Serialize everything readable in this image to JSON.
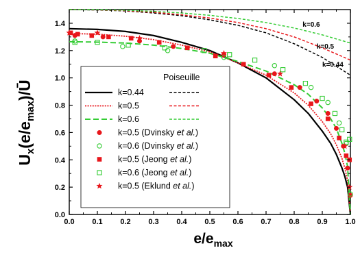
{
  "chart_data": {
    "type": "line",
    "xlabel": {
      "main": "e/e",
      "sub": "max"
    },
    "ylabel": {
      "main": "U",
      "sub": "x",
      "rest": "(e/e",
      "sub2": "max",
      "end": ")/Ū"
    },
    "xlim": [
      0.0,
      1.0
    ],
    "ylim": [
      0.0,
      1.5
    ],
    "x_ticks": [
      "0.0",
      "0.1",
      "0.2",
      "0.3",
      "0.4",
      "0.5",
      "0.6",
      "0.7",
      "0.8",
      "0.9",
      "1.0"
    ],
    "y_ticks": [
      "0.0",
      "0.2",
      "0.4",
      "0.6",
      "0.8",
      "1.0",
      "1.2",
      "1.4"
    ],
    "x_tick_values": [
      0.0,
      0.1,
      0.2,
      0.3,
      0.4,
      0.5,
      0.6,
      0.7,
      0.8,
      0.9,
      1.0
    ],
    "y_tick_values": [
      0.0,
      0.2,
      0.4,
      0.6,
      0.8,
      1.0,
      1.2,
      1.4
    ],
    "grid": false,
    "legend": {
      "placement": "center-left",
      "poiseuille_header": "Poiseuille",
      "entries": [
        {
          "label": "k=0.44",
          "key": "k044"
        },
        {
          "label": "k=0.5",
          "key": "k05"
        },
        {
          "label": "k=0.6",
          "key": "k06"
        },
        {
          "label": "k=0.5 (Dvinsky ",
          "italic": "et al.",
          "end": ")",
          "key": "dv05"
        },
        {
          "label": "k=0.6 (Dvinsky ",
          "italic": "et al.",
          "end": ")",
          "key": "dv06"
        },
        {
          "label": "k=0.5 (Jeong ",
          "italic": "et al.",
          "end": ")",
          "key": "je05"
        },
        {
          "label": "k=0.6 (Jeong ",
          "italic": "et al.",
          "end": ")",
          "key": "je06"
        },
        {
          "label": "k=0.5 (Eklund ",
          "italic": "et al.",
          "end": ")",
          "key": "ek05"
        }
      ]
    },
    "annotations": [
      {
        "text": "k=0.6",
        "x": 0.83,
        "y": 1.375
      },
      {
        "text": "k=0.5",
        "x": 0.88,
        "y": 1.215
      },
      {
        "text": "k=0.44",
        "x": 0.9,
        "y": 1.08
      }
    ],
    "line_series": [
      {
        "key": "k044",
        "color": "#000000",
        "style": "solid",
        "x": [
          0.0,
          0.1,
          0.2,
          0.3,
          0.4,
          0.5,
          0.6,
          0.7,
          0.8,
          0.85,
          0.9,
          0.93,
          0.95,
          0.97,
          0.98,
          0.99,
          1.0
        ],
        "y": [
          1.36,
          1.355,
          1.34,
          1.31,
          1.26,
          1.2,
          1.11,
          1.0,
          0.84,
          0.74,
          0.61,
          0.52,
          0.44,
          0.34,
          0.28,
          0.2,
          0.0
        ]
      },
      {
        "key": "k05",
        "color": "#e8161b",
        "style": "dotted",
        "x": [
          0.0,
          0.1,
          0.2,
          0.3,
          0.4,
          0.5,
          0.6,
          0.7,
          0.8,
          0.85,
          0.9,
          0.93,
          0.95,
          0.97,
          0.98,
          0.99,
          1.0
        ],
        "y": [
          1.325,
          1.32,
          1.305,
          1.28,
          1.24,
          1.19,
          1.11,
          1.02,
          0.89,
          0.8,
          0.68,
          0.59,
          0.51,
          0.41,
          0.34,
          0.25,
          0.0
        ]
      },
      {
        "key": "k06",
        "color": "#33cc33",
        "style": "dashed",
        "x": [
          0.0,
          0.1,
          0.2,
          0.3,
          0.4,
          0.5,
          0.6,
          0.7,
          0.8,
          0.85,
          0.9,
          0.93,
          0.95,
          0.97,
          0.98,
          0.99,
          1.0
        ],
        "y": [
          1.265,
          1.262,
          1.255,
          1.24,
          1.215,
          1.18,
          1.12,
          1.05,
          0.95,
          0.88,
          0.78,
          0.7,
          0.63,
          0.52,
          0.45,
          0.35,
          0.0
        ]
      },
      {
        "key": "p044",
        "color": "#000000",
        "style": "shortdash",
        "x": [
          0.0,
          0.1,
          0.2,
          0.3,
          0.4,
          0.5,
          0.6,
          0.7,
          0.8,
          0.9,
          1.0
        ],
        "y": [
          1.5,
          1.497,
          1.49,
          1.475,
          1.455,
          1.425,
          1.385,
          1.33,
          1.25,
          1.15,
          1.02
        ]
      },
      {
        "key": "p05",
        "color": "#e8161b",
        "style": "shortdash",
        "x": [
          0.0,
          0.1,
          0.2,
          0.3,
          0.4,
          0.5,
          0.6,
          0.7,
          0.8,
          0.9,
          1.0
        ],
        "y": [
          1.5,
          1.498,
          1.492,
          1.48,
          1.462,
          1.438,
          1.405,
          1.36,
          1.3,
          1.22,
          1.13
        ]
      },
      {
        "key": "p06",
        "color": "#33cc33",
        "style": "shortdash",
        "x": [
          0.0,
          0.1,
          0.2,
          0.3,
          0.4,
          0.5,
          0.6,
          0.7,
          0.8,
          0.9,
          1.0
        ],
        "y": [
          1.5,
          1.499,
          1.495,
          1.487,
          1.475,
          1.458,
          1.435,
          1.405,
          1.365,
          1.315,
          1.255
        ]
      }
    ],
    "marker_series": [
      {
        "key": "dv05",
        "marker": "circle-filled",
        "color": "#e8161b",
        "x": [
          0.02,
          0.12,
          0.25,
          0.37,
          0.55,
          0.73,
          0.82,
          0.88,
          0.92,
          0.95,
          0.975,
          0.99,
          1.0
        ],
        "y": [
          1.31,
          1.3,
          1.27,
          1.23,
          1.17,
          1.03,
          0.93,
          0.83,
          0.74,
          0.63,
          0.5,
          0.34,
          0.14
        ]
      },
      {
        "key": "dv06",
        "marker": "circle-open",
        "color": "#33cc33",
        "x": [
          0.02,
          0.19,
          0.35,
          0.55,
          0.73,
          0.86,
          0.92,
          0.96,
          0.985,
          1.0
        ],
        "y": [
          1.27,
          1.23,
          1.2,
          1.15,
          1.09,
          0.93,
          0.82,
          0.67,
          0.52,
          0.15
        ]
      },
      {
        "key": "je05",
        "marker": "square-filled",
        "color": "#e8161b",
        "x": [
          0.005,
          0.03,
          0.08,
          0.14,
          0.22,
          0.32,
          0.42,
          0.52,
          0.62,
          0.71,
          0.79,
          0.86,
          0.92,
          0.96,
          0.985,
          0.997
        ],
        "y": [
          1.33,
          1.32,
          1.31,
          1.3,
          1.29,
          1.26,
          1.22,
          1.16,
          1.1,
          1.02,
          0.93,
          0.81,
          0.7,
          0.56,
          0.43,
          0.4
        ]
      },
      {
        "key": "je06",
        "marker": "square-open",
        "color": "#33cc33",
        "x": [
          0.02,
          0.1,
          0.21,
          0.34,
          0.48,
          0.57,
          0.66,
          0.76,
          0.84,
          0.9,
          0.945,
          0.97,
          0.985,
          0.997
        ],
        "y": [
          1.26,
          1.26,
          1.24,
          1.22,
          1.2,
          1.17,
          1.13,
          1.06,
          0.96,
          0.85,
          0.74,
          0.62,
          0.53,
          0.55
        ]
      },
      {
        "key": "ek05",
        "marker": "star",
        "color": "#e8161b",
        "x": [
          0.0,
          0.1,
          0.25,
          0.55,
          0.75,
          0.98,
          0.997
        ],
        "y": [
          1.33,
          1.33,
          1.29,
          1.18,
          1.03,
          0.5,
          0.2
        ]
      }
    ]
  }
}
